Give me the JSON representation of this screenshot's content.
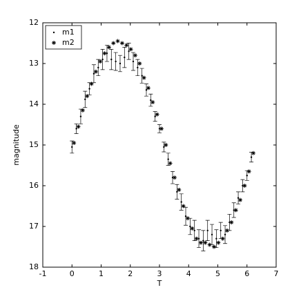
{
  "chart_data": {
    "type": "scatter",
    "x_label": "T",
    "y_label": "magnitude",
    "xlim": [
      -1,
      7
    ],
    "xticks": [
      -1,
      0,
      1,
      2,
      3,
      4,
      5,
      6,
      7
    ],
    "ylim": [
      12,
      18
    ],
    "yticks": [
      12,
      13,
      14,
      15,
      16,
      17,
      18
    ],
    "y_reversed": true,
    "legend": "upper left",
    "series": [
      {
        "name": "m1",
        "color": "#000000",
        "marker": "dot",
        "x": [
          0.0,
          0.15,
          0.3,
          0.45,
          0.6,
          0.75,
          0.9,
          1.05,
          1.2,
          1.35,
          1.5,
          1.65,
          1.8,
          1.95,
          2.1,
          2.25,
          2.4,
          2.55,
          2.7,
          2.85,
          3.0,
          3.15,
          3.3,
          3.45,
          3.6,
          3.75,
          3.9,
          4.05,
          4.2,
          4.35,
          4.5,
          4.65,
          4.8,
          4.95,
          5.1,
          5.25,
          5.4,
          5.55,
          5.7,
          5.85,
          6.0,
          6.15
        ],
        "values": [
          15.05,
          14.6,
          14.3,
          13.88,
          13.62,
          13.25,
          13.1,
          12.9,
          12.75,
          12.9,
          12.95,
          13.0,
          12.85,
          12.7,
          12.95,
          13.1,
          13.3,
          13.65,
          13.9,
          14.3,
          14.6,
          15.05,
          15.35,
          15.8,
          16.15,
          16.4,
          16.75,
          17.0,
          17.1,
          17.3,
          17.35,
          17.1,
          17.2,
          17.3,
          17.1,
          17.2,
          16.9,
          16.6,
          16.3,
          16.0,
          15.75,
          15.3
        ],
        "errors": [
          0.15,
          0.12,
          0.18,
          0.2,
          0.15,
          0.22,
          0.2,
          0.25,
          0.2,
          0.25,
          0.22,
          0.2,
          0.25,
          0.2,
          0.22,
          0.2,
          0.18,
          0.15,
          0.15,
          0.12,
          0.1,
          0.12,
          0.15,
          0.15,
          0.18,
          0.2,
          0.22,
          0.2,
          0.25,
          0.22,
          0.25,
          0.25,
          0.25,
          0.22,
          0.2,
          0.22,
          0.2,
          0.18,
          0.15,
          0.15,
          0.12,
          0.12
        ]
      },
      {
        "name": "m2",
        "color": "#000000",
        "marker": "asterisk",
        "x": [
          0.07,
          0.22,
          0.37,
          0.52,
          0.67,
          0.82,
          0.97,
          1.12,
          1.27,
          1.42,
          1.57,
          1.72,
          1.87,
          2.02,
          2.17,
          2.32,
          2.47,
          2.62,
          2.77,
          2.92,
          3.07,
          3.22,
          3.37,
          3.52,
          3.67,
          3.82,
          3.97,
          4.12,
          4.27,
          4.42,
          4.57,
          4.72,
          4.87,
          5.02,
          5.17,
          5.32,
          5.47,
          5.62,
          5.77,
          5.92,
          6.07,
          6.22
        ],
        "values": [
          14.95,
          14.55,
          14.15,
          13.8,
          13.5,
          13.2,
          12.95,
          12.75,
          12.6,
          12.5,
          12.45,
          12.5,
          12.55,
          12.65,
          12.8,
          13.0,
          13.35,
          13.6,
          13.95,
          14.25,
          14.6,
          15.0,
          15.45,
          15.8,
          16.1,
          16.5,
          16.8,
          17.05,
          17.3,
          17.4,
          17.4,
          17.45,
          17.5,
          17.4,
          17.3,
          17.1,
          16.9,
          16.6,
          16.35,
          16.0,
          15.65,
          15.2
        ]
      }
    ]
  }
}
